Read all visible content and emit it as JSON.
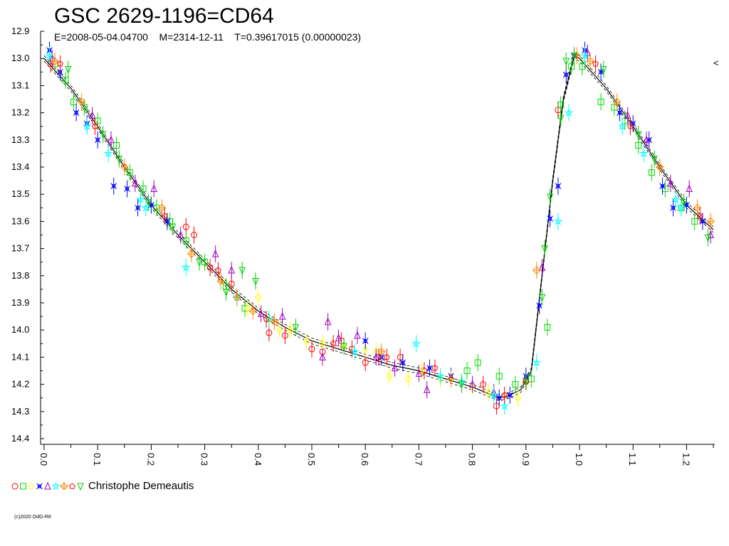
{
  "chart_data": {
    "type": "scatter",
    "title": "GSC 2629-1196=CD64",
    "subtitle": "E=2008-05-04.04700    M=2314-12-11    T=0.39617015 (0.00000023)",
    "xlabel": "",
    "ylabel": "",
    "xlim": [
      0.0,
      1.25
    ],
    "ylim": [
      12.9,
      14.4
    ],
    "y_inverted": true,
    "grid": false,
    "x_ticks": [
      "0.0",
      "0.1",
      "0.2",
      "0.3",
      "0.4",
      "0.5",
      "0.6",
      "0.7",
      "0.8",
      "0.9",
      "1.0",
      "1.1",
      "1.2"
    ],
    "y_ticks": [
      "12.9",
      "13.0",
      "13.1",
      "13.2",
      "13.3",
      "13.4",
      "13.5",
      "13.6",
      "13.7",
      "13.8",
      "13.9",
      "14.0",
      "14.1",
      "14.2",
      "14.3",
      "14.4"
    ],
    "corner_mark": "<",
    "fit_curve": {
      "phase": [
        0.0,
        0.05,
        0.1,
        0.15,
        0.2,
        0.25,
        0.3,
        0.35,
        0.4,
        0.45,
        0.5,
        0.55,
        0.6,
        0.65,
        0.7,
        0.75,
        0.8,
        0.85,
        0.87,
        0.89,
        0.91,
        0.93,
        0.95,
        0.97,
        0.99,
        1.0,
        1.05,
        1.1,
        1.15,
        1.2,
        1.25
      ],
      "mag": [
        13.0,
        13.11,
        13.25,
        13.4,
        13.54,
        13.65,
        13.75,
        13.85,
        13.93,
        13.99,
        14.04,
        14.07,
        14.1,
        14.13,
        14.15,
        14.18,
        14.21,
        14.25,
        14.24,
        14.22,
        14.15,
        13.8,
        13.45,
        13.15,
        12.99,
        13.0,
        13.11,
        13.25,
        13.4,
        13.54,
        13.63
      ]
    },
    "legend": {
      "label": "Christophe Demeautis",
      "placement": "bottom-left",
      "symbols": [
        {
          "shape": "circle",
          "color": "#ff0000"
        },
        {
          "shape": "square",
          "color": "#00dd00"
        },
        {
          "shape": "diamond",
          "color": "#ffff00"
        },
        {
          "shape": "xstar",
          "color": "#0000ff"
        },
        {
          "shape": "triangle",
          "color": "#a000c0"
        },
        {
          "shape": "star",
          "color": "#00ffff"
        },
        {
          "shape": "cross",
          "color": "#ff8800"
        },
        {
          "shape": "pentagon",
          "color": "#ff0000"
        },
        {
          "shape": "triangle-down",
          "color": "#00cc00"
        }
      ]
    },
    "series": [
      {
        "shape": "circle",
        "color": "#ff0000",
        "x": [
          0.012,
          0.265,
          0.28,
          0.31,
          0.35,
          0.42,
          0.45,
          0.5,
          0.52,
          0.555,
          0.575,
          0.6,
          0.625,
          0.665,
          0.71,
          0.82,
          0.845,
          0.9,
          0.96
        ],
        "y": [
          13.02,
          13.62,
          13.65,
          13.77,
          13.83,
          14.01,
          14.02,
          14.07,
          14.08,
          14.04,
          14.07,
          14.12,
          14.1,
          14.1,
          14.15,
          14.2,
          14.28,
          14.19,
          13.19
        ]
      },
      {
        "shape": "square",
        "color": "#00dd00",
        "x": [
          0.02,
          0.04,
          0.055,
          0.075,
          0.1,
          0.135,
          0.16,
          0.185,
          0.21,
          0.235,
          0.265,
          0.3,
          0.34,
          0.375,
          0.79,
          0.81,
          0.85,
          0.88,
          0.91,
          0.94,
          0.965,
          0.985,
          1.005,
          1.04,
          1.065,
          1.085,
          1.11,
          1.135,
          1.16,
          1.19,
          1.215
        ],
        "y": [
          13.02,
          13.08,
          13.16,
          13.18,
          13.23,
          13.32,
          13.42,
          13.48,
          13.55,
          13.6,
          13.67,
          13.75,
          13.84,
          13.92,
          14.15,
          14.12,
          14.17,
          14.2,
          14.18,
          13.99,
          13.17,
          13.03,
          13.03,
          13.16,
          13.18,
          13.23,
          13.32,
          13.42,
          13.48,
          13.55,
          13.6
        ]
      },
      {
        "shape": "diamond",
        "color": "#ffff00",
        "x": [
          0.38,
          0.4,
          0.42,
          0.44,
          0.46,
          0.49,
          0.52,
          0.56,
          0.6,
          0.62,
          0.645,
          0.68,
          0.705,
          0.74,
          0.8,
          0.83,
          0.86,
          0.885
        ],
        "y": [
          13.92,
          13.88,
          13.96,
          14.0,
          14.0,
          14.04,
          14.05,
          14.06,
          14.07,
          14.08,
          14.17,
          14.18,
          14.15,
          14.18,
          14.21,
          14.23,
          14.24,
          14.25
        ]
      },
      {
        "shape": "xstar",
        "color": "#0000ff",
        "x": [
          0.01,
          0.03,
          0.06,
          0.08,
          0.1,
          0.13,
          0.155,
          0.175,
          0.2,
          0.23,
          0.6,
          0.63,
          0.67,
          0.72,
          0.76,
          0.85,
          0.87,
          0.9,
          0.925,
          0.945,
          0.96,
          0.975,
          0.99,
          1.01,
          1.04,
          1.075,
          1.1,
          1.13,
          1.155,
          1.175,
          1.2,
          1.23
        ],
        "y": [
          12.97,
          13.05,
          13.2,
          13.24,
          13.3,
          13.47,
          13.48,
          13.55,
          13.54,
          13.6,
          14.04,
          14.1,
          14.12,
          14.14,
          14.17,
          14.25,
          14.24,
          14.17,
          13.91,
          13.59,
          13.47,
          13.06,
          12.99,
          12.97,
          13.05,
          13.2,
          13.24,
          13.3,
          13.47,
          13.55,
          13.54,
          13.6
        ]
      },
      {
        "shape": "triangle",
        "color": "#a000c0",
        "x": [
          0.015,
          0.09,
          0.125,
          0.17,
          0.205,
          0.255,
          0.32,
          0.35,
          0.405,
          0.445,
          0.52,
          0.53,
          0.55,
          0.585,
          0.62,
          0.655,
          0.7,
          0.715,
          0.8,
          0.84,
          0.93,
          1.015,
          1.09,
          1.125,
          1.17,
          1.205,
          1.245
        ],
        "y": [
          13.0,
          13.21,
          13.3,
          13.46,
          13.48,
          13.65,
          13.72,
          13.78,
          13.94,
          13.95,
          14.1,
          13.97,
          14.03,
          14.02,
          14.1,
          14.14,
          14.16,
          14.22,
          14.2,
          14.23,
          13.77,
          12.98,
          13.21,
          13.3,
          13.46,
          13.48,
          13.65
        ]
      },
      {
        "shape": "star",
        "color": "#00ffff",
        "x": [
          0.01,
          0.08,
          0.12,
          0.18,
          0.19,
          0.265,
          0.36,
          0.42,
          0.58,
          0.695,
          0.74,
          0.78,
          0.84,
          0.86,
          0.92,
          0.96,
          0.98,
          1.01,
          1.08,
          1.12,
          1.18,
          1.19
        ],
        "y": [
          12.99,
          13.25,
          13.35,
          13.52,
          13.55,
          13.77,
          13.88,
          13.96,
          14.08,
          14.05,
          14.17,
          14.19,
          14.24,
          14.28,
          14.12,
          13.6,
          13.2,
          12.99,
          13.25,
          13.35,
          13.52,
          13.55
        ]
      },
      {
        "shape": "cross",
        "color": "#ff8800",
        "x": [
          0.02,
          0.07,
          0.15,
          0.22,
          0.275,
          0.33,
          0.36,
          0.39,
          0.43,
          0.63,
          0.76,
          0.92,
          0.995,
          1.02,
          1.07,
          1.15,
          1.22,
          1.245
        ],
        "y": [
          13.01,
          13.16,
          13.4,
          13.55,
          13.72,
          13.82,
          13.88,
          13.93,
          13.97,
          14.08,
          14.18,
          13.78,
          12.99,
          13.01,
          13.16,
          13.4,
          13.55,
          13.6
        ]
      },
      {
        "shape": "pentagon",
        "color": "#ff0000",
        "x": [
          0.03,
          0.095,
          0.225,
          0.325,
          0.415,
          0.54,
          0.64,
          0.73,
          0.86,
          0.9,
          1.03,
          1.095,
          1.225
        ],
        "y": [
          13.02,
          13.25,
          13.58,
          13.78,
          13.96,
          14.05,
          14.1,
          14.14,
          14.24,
          14.19,
          13.02,
          13.25,
          13.58
        ]
      },
      {
        "shape": "triangle-down",
        "color": "#00cc00",
        "x": [
          0.045,
          0.11,
          0.14,
          0.195,
          0.24,
          0.29,
          0.34,
          0.37,
          0.395,
          0.47,
          0.56,
          0.78,
          0.9,
          0.93,
          0.935,
          0.945,
          0.965,
          0.975,
          0.99,
          1.045,
          1.11,
          1.14,
          1.195,
          1.24
        ],
        "y": [
          13.04,
          13.28,
          13.37,
          13.53,
          13.62,
          13.75,
          13.86,
          13.78,
          13.82,
          13.99,
          14.06,
          14.2,
          14.19,
          13.88,
          13.7,
          13.51,
          13.22,
          13.01,
          12.99,
          13.04,
          13.28,
          13.37,
          13.53,
          13.66
        ]
      }
    ]
  }
}
